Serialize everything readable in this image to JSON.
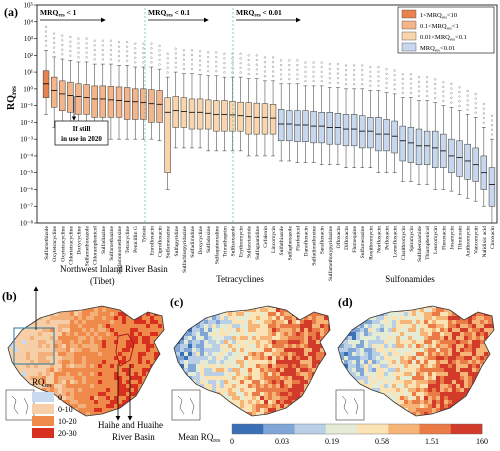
{
  "panel_a": {
    "label": "(a)",
    "ylabel_main": "RQ",
    "ylabel_sub": "res",
    "yticks": [
      "10⁵",
      "10⁴",
      "10³",
      "10²",
      "10¹",
      "10⁰",
      "10⁻¹",
      "10⁻²",
      "10⁻³",
      "10⁻⁴",
      "10⁻⁵",
      "10⁻⁶",
      "10⁻⁷",
      "10⁻⁸"
    ],
    "thresholds": [
      {
        "main": "MRQ",
        "sub": "res",
        "rest": " < 1"
      },
      {
        "main": "MRQ",
        "sub": "res",
        "rest": " < 0.1"
      },
      {
        "main": "MRQ",
        "sub": "res",
        "rest": " < 0.01"
      }
    ],
    "note_line1": "If still",
    "note_line2": "in use in 2020",
    "legend": [
      {
        "pre": "1<MRQ",
        "sub": "res",
        "post": "<10",
        "color": "#e8834d"
      },
      {
        "pre": "0.1<MRQ",
        "sub": "res",
        "post": "<1",
        "color": "#f3b58b"
      },
      {
        "pre": "0.01<MRQ",
        "sub": "res",
        "post": "<0.1",
        "color": "#f7d6ae"
      },
      {
        "pre": "MRQ",
        "sub": "res",
        "post": "<0.01",
        "color": "#c7d8ee"
      }
    ]
  },
  "chart_data": {
    "type": "box",
    "title": "",
    "ylabel": "RQres",
    "yscale": "log",
    "ylim": [
      1e-08,
      100000
    ],
    "categories": [
      "Sulfamethizole",
      "Oxytetracycline",
      "Oxytetracycline",
      "Chlortetracycline",
      "Doxycycline",
      "Sulfamethoxazole",
      "Chloramphenicol",
      "Sulfadiazine",
      "Sulfamethazine",
      "Sulfamonomethoxine",
      "Tetracycline",
      "Penicillin G",
      "Tylosin",
      "Enrofloxacin",
      "Ciprofloxacin",
      "Sulfamerazine",
      "Sulfapyridine",
      "Sulfachlorpyridazine",
      "Sulfadimidine",
      "Doxycycline",
      "Sulfadoxine",
      "Sulfaquinoxaline",
      "Trimethoprim",
      "Sulfisoxazole",
      "Erythromycin",
      "Sulfacetamide",
      "Sulfaguanidine",
      "Cefalexin",
      "Lincomycin",
      "Sulfathiazole",
      "Sulfaphenazole",
      "Florfenicol",
      "Danofloxacin",
      "Sulfadimethoxine",
      "Sarafloxacin",
      "Sulfamethoxypyridazine",
      "Ofloxacin",
      "Difloxacin",
      "Flumequine",
      "Sulfamerazine",
      "Roxithromycin",
      "Norfloxacin",
      "Pefloxacin",
      "Lomefloxacin",
      "Clarithromycin",
      "Spiramycin",
      "Sulfabenzamide",
      "Thiamphenicol",
      "Leucomycin",
      "Fleroxacin",
      "Josamycin",
      "Tilmicosin",
      "Azithromycin",
      "Vancomycin",
      "Nalidixic acid",
      "Cinoxacin"
    ],
    "series": [
      {
        "values": [
          {
            "q1": 0.3,
            "median": 2,
            "q3": 12,
            "lo": 0.03,
            "hi": 200,
            "band": "1-10"
          },
          {
            "q1": 0.08,
            "median": 0.8,
            "q3": 5,
            "lo": 0.005,
            "hi": 80,
            "band": "0.1-1"
          },
          {
            "q1": 0.05,
            "median": 0.5,
            "q3": 3,
            "lo": 0.003,
            "hi": 60,
            "band": "0.1-1"
          },
          {
            "q1": 0.04,
            "median": 0.4,
            "q3": 2.5,
            "lo": 0.003,
            "hi": 50,
            "band": "0.1-1"
          },
          {
            "q1": 0.03,
            "median": 0.35,
            "q3": 2,
            "lo": 0.002,
            "hi": 40,
            "band": "0.1-1"
          },
          {
            "q1": 0.03,
            "median": 0.3,
            "q3": 1.8,
            "lo": 0.002,
            "hi": 40,
            "band": "0.1-1"
          },
          {
            "q1": 0.02,
            "median": 0.25,
            "q3": 1.5,
            "lo": 0.001,
            "hi": 30,
            "band": "0.1-1"
          },
          {
            "q1": 0.02,
            "median": 0.25,
            "q3": 1.5,
            "lo": 0.001,
            "hi": 30,
            "band": "0.1-1"
          },
          {
            "q1": 0.02,
            "median": 0.22,
            "q3": 1.4,
            "lo": 0.001,
            "hi": 30,
            "band": "0.1-1"
          },
          {
            "q1": 0.02,
            "median": 0.2,
            "q3": 1.3,
            "lo": 0.001,
            "hi": 25,
            "band": "0.1-1"
          },
          {
            "q1": 0.015,
            "median": 0.18,
            "q3": 1.2,
            "lo": 0.001,
            "hi": 25,
            "band": "0.1-1"
          },
          {
            "q1": 0.015,
            "median": 0.17,
            "q3": 1,
            "lo": 0.001,
            "hi": 20,
            "band": "0.1-1"
          },
          {
            "q1": 0.015,
            "median": 0.15,
            "q3": 1,
            "lo": 0.001,
            "hi": 20,
            "band": "0.1-1"
          },
          {
            "q1": 0.01,
            "median": 0.13,
            "q3": 0.9,
            "lo": 0.001,
            "hi": 20,
            "band": "0.1-1"
          },
          {
            "q1": 0.01,
            "median": 0.12,
            "q3": 0.8,
            "lo": 0.0008,
            "hi": 15,
            "band": "0.1-1"
          },
          {
            "q1": 1e-05,
            "median": 0.04,
            "q3": 0.3,
            "lo": 1e-06,
            "hi": 5,
            "band": "0.01-0.1"
          },
          {
            "q1": 0.005,
            "median": 0.05,
            "q3": 0.35,
            "lo": 0.0003,
            "hi": 10,
            "band": "0.01-0.1"
          },
          {
            "q1": 0.005,
            "median": 0.045,
            "q3": 0.3,
            "lo": 0.0003,
            "hi": 8,
            "band": "0.01-0.1"
          },
          {
            "q1": 0.004,
            "median": 0.04,
            "q3": 0.25,
            "lo": 0.0003,
            "hi": 8,
            "band": "0.01-0.1"
          },
          {
            "q1": 0.004,
            "median": 0.04,
            "q3": 0.25,
            "lo": 0.0003,
            "hi": 7,
            "band": "0.01-0.1"
          },
          {
            "q1": 0.004,
            "median": 0.035,
            "q3": 0.22,
            "lo": 0.0002,
            "hi": 6,
            "band": "0.01-0.1"
          },
          {
            "q1": 0.003,
            "median": 0.03,
            "q3": 0.2,
            "lo": 0.0002,
            "hi": 6,
            "band": "0.01-0.1"
          },
          {
            "q1": 0.003,
            "median": 0.03,
            "q3": 0.2,
            "lo": 0.0002,
            "hi": 5,
            "band": "0.01-0.1"
          },
          {
            "q1": 0.003,
            "median": 0.028,
            "q3": 0.18,
            "lo": 0.0002,
            "hi": 5,
            "band": "0.01-0.1"
          },
          {
            "q1": 0.003,
            "median": 0.025,
            "q3": 0.16,
            "lo": 0.0002,
            "hi": 5,
            "band": "0.01-0.1"
          },
          {
            "q1": 0.002,
            "median": 0.022,
            "q3": 0.15,
            "lo": 0.0001,
            "hi": 4,
            "band": "0.01-0.1"
          },
          {
            "q1": 0.002,
            "median": 0.02,
            "q3": 0.14,
            "lo": 0.0001,
            "hi": 4,
            "band": "0.01-0.1"
          },
          {
            "q1": 0.002,
            "median": 0.02,
            "q3": 0.13,
            "lo": 0.0001,
            "hi": 3,
            "band": "0.01-0.1"
          },
          {
            "q1": 0.002,
            "median": 0.018,
            "q3": 0.12,
            "lo": 0.0001,
            "hi": 3,
            "band": "0.01-0.1"
          },
          {
            "q1": 0.0008,
            "median": 0.008,
            "q3": 0.06,
            "lo": 5e-05,
            "hi": 2,
            "band": "<0.01"
          },
          {
            "q1": 0.0008,
            "median": 0.008,
            "q3": 0.05,
            "lo": 5e-05,
            "hi": 2,
            "band": "<0.01"
          },
          {
            "q1": 0.0007,
            "median": 0.007,
            "q3": 0.05,
            "lo": 4e-05,
            "hi": 2,
            "band": "<0.01"
          },
          {
            "q1": 0.0007,
            "median": 0.007,
            "q3": 0.05,
            "lo": 4e-05,
            "hi": 1.5,
            "band": "<0.01"
          },
          {
            "q1": 0.0006,
            "median": 0.006,
            "q3": 0.045,
            "lo": 4e-05,
            "hi": 1.5,
            "band": "<0.01"
          },
          {
            "q1": 0.0006,
            "median": 0.006,
            "q3": 0.04,
            "lo": 3e-05,
            "hi": 1.5,
            "band": "<0.01"
          },
          {
            "q1": 0.0005,
            "median": 0.005,
            "q3": 0.04,
            "lo": 3e-05,
            "hi": 1.2,
            "band": "<0.01"
          },
          {
            "q1": 0.0005,
            "median": 0.005,
            "q3": 0.035,
            "lo": 3e-05,
            "hi": 1.2,
            "band": "<0.01"
          },
          {
            "q1": 0.0004,
            "median": 0.004,
            "q3": 0.03,
            "lo": 2e-05,
            "hi": 1,
            "band": "<0.01"
          },
          {
            "q1": 0.0004,
            "median": 0.004,
            "q3": 0.03,
            "lo": 2e-05,
            "hi": 1,
            "band": "<0.01"
          },
          {
            "q1": 0.0003,
            "median": 0.003,
            "q3": 0.025,
            "lo": 2e-05,
            "hi": 1,
            "band": "<0.01"
          },
          {
            "q1": 0.0003,
            "median": 0.003,
            "q3": 0.02,
            "lo": 2e-05,
            "hi": 0.8,
            "band": "<0.01"
          },
          {
            "q1": 0.0002,
            "median": 0.002,
            "q3": 0.02,
            "lo": 1e-05,
            "hi": 0.8,
            "band": "<0.01"
          },
          {
            "q1": 0.0002,
            "median": 0.002,
            "q3": 0.015,
            "lo": 1e-05,
            "hi": 0.6,
            "band": "<0.01"
          },
          {
            "q1": 0.00015,
            "median": 0.0015,
            "q3": 0.012,
            "lo": 1e-05,
            "hi": 0.5,
            "band": "<0.01"
          },
          {
            "q1": 5e-05,
            "median": 0.0008,
            "q3": 0.006,
            "lo": 3e-06,
            "hi": 0.3,
            "band": "<0.01"
          },
          {
            "q1": 4e-05,
            "median": 0.0006,
            "q3": 0.005,
            "lo": 3e-06,
            "hi": 0.3,
            "band": "<0.01"
          },
          {
            "q1": 3e-05,
            "median": 0.0004,
            "q3": 0.004,
            "lo": 2e-06,
            "hi": 0.2,
            "band": "<0.01"
          },
          {
            "q1": 3e-05,
            "median": 0.0004,
            "q3": 0.003,
            "lo": 2e-06,
            "hi": 0.2,
            "band": "<0.01"
          },
          {
            "q1": 2e-05,
            "median": 0.0003,
            "q3": 0.003,
            "lo": 1e-06,
            "hi": 0.15,
            "band": "<0.01"
          },
          {
            "q1": 2e-05,
            "median": 0.0002,
            "q3": 0.002,
            "lo": 1e-06,
            "hi": 0.1,
            "band": "<0.01"
          },
          {
            "q1": 1e-05,
            "median": 0.0001,
            "q3": 0.001,
            "lo": 8e-07,
            "hi": 0.08,
            "band": "<0.01"
          },
          {
            "q1": 6e-06,
            "median": 8e-05,
            "q3": 0.0008,
            "lo": 5e-07,
            "hi": 0.05,
            "band": "<0.01"
          },
          {
            "q1": 4e-06,
            "median": 5e-05,
            "q3": 0.0005,
            "lo": 3e-07,
            "hi": 0.03,
            "band": "<0.01"
          },
          {
            "q1": 3e-06,
            "median": 3e-05,
            "q3": 0.0003,
            "lo": 2e-07,
            "hi": 0.02,
            "band": "<0.01"
          },
          {
            "q1": 1e-06,
            "median": 1e-05,
            "q3": 0.0001,
            "lo": 1e-07,
            "hi": 0.005,
            "band": "<0.01"
          },
          {
            "q1": 1e-07,
            "median": 2e-06,
            "q3": 2e-05,
            "lo": 1e-08,
            "hi": 0.001,
            "band": "<0.01"
          }
        ]
      }
    ]
  },
  "panel_b": {
    "label": "(b)",
    "title_line1": "Northwest Inland River Basin",
    "title_line2": "(Tibet)",
    "annot_line1": "Haihe and Huaihe",
    "annot_line2": "River Basin",
    "legend_title_main": "RQ",
    "legend_title_sub": "res",
    "legend": [
      {
        "label": "0",
        "color": "#c8daf0"
      },
      {
        "label": "0-10",
        "color": "#f6cfa8"
      },
      {
        "label": "10-20",
        "color": "#ef8a4a"
      },
      {
        "label": "20-30",
        "color": "#d7301f"
      }
    ]
  },
  "panel_c": {
    "label": "(c)",
    "title": "Tetracyclines"
  },
  "panel_d": {
    "label": "(d)",
    "title": "Sulfonamides"
  },
  "colorbar": {
    "title_main": "Mean RQ",
    "title_sub": "res",
    "ticks": [
      "0",
      "0.03",
      "0.19",
      "0.58",
      "1.51",
      "160"
    ],
    "colors": [
      "#3b6fb6",
      "#7fa6d6",
      "#b9cfe6",
      "#e4ecd6",
      "#fbe3b5",
      "#f7b477",
      "#ea7a46",
      "#d23a2a"
    ]
  }
}
